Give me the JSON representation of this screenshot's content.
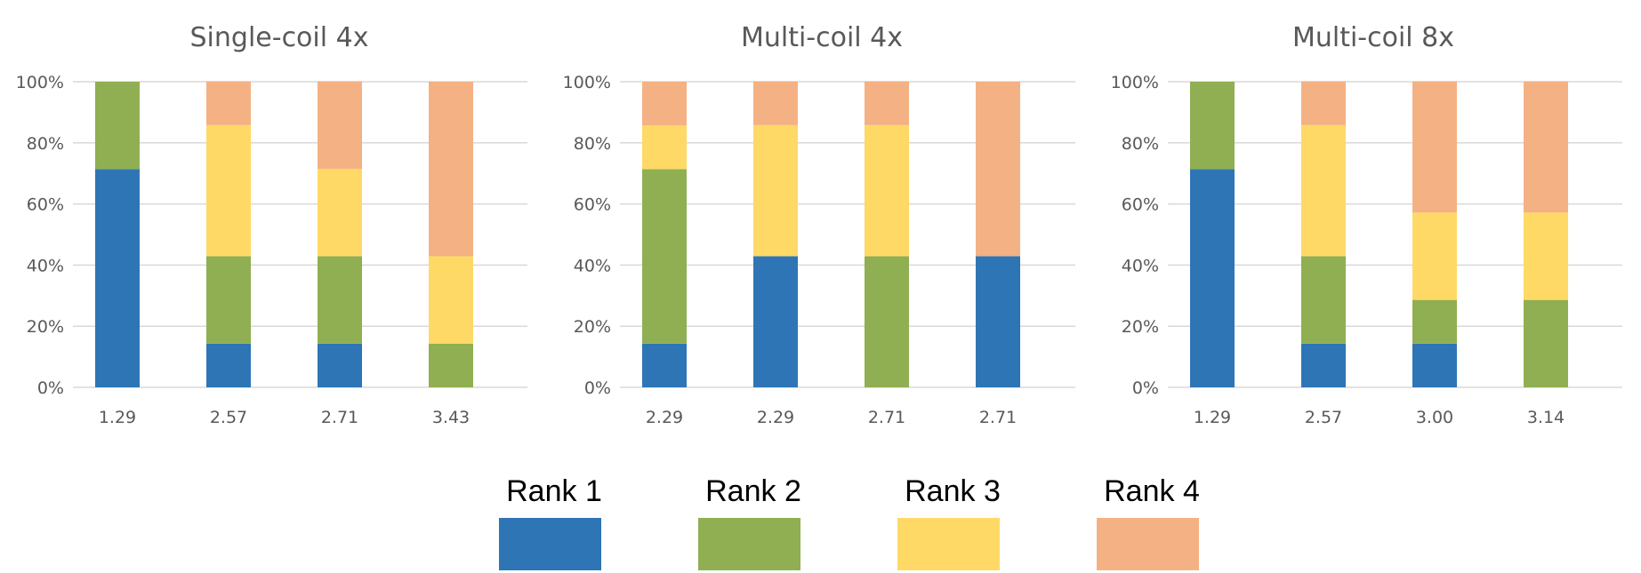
{
  "colors": {
    "Rank 1": "#2e75b6",
    "Rank 2": "#8faf52",
    "Rank 3": "#ffd965",
    "Rank 4": "#f4b183",
    "grid": "#d9d9d9",
    "text": "#595959"
  },
  "legend": {
    "placement": "bottom-center",
    "items": [
      "Rank 1",
      "Rank 2",
      "Rank 3",
      "Rank 4"
    ]
  },
  "chart_data": [
    {
      "type": "bar",
      "stacked": true,
      "title": "Single-coil 4x",
      "categories": [
        "1.29",
        "2.57",
        "2.71",
        "3.43"
      ],
      "ylim": [
        0,
        100
      ],
      "yticks": [
        "0%",
        "20%",
        "40%",
        "60%",
        "80%",
        "100%"
      ],
      "grid": true,
      "series": [
        {
          "name": "Rank 1",
          "values": [
            71.4,
            14.3,
            14.3,
            0
          ]
        },
        {
          "name": "Rank 2",
          "values": [
            28.6,
            28.6,
            28.6,
            14.3
          ]
        },
        {
          "name": "Rank 3",
          "values": [
            0,
            42.9,
            28.6,
            28.6
          ]
        },
        {
          "name": "Rank 4",
          "values": [
            0,
            14.3,
            28.6,
            57.1
          ]
        }
      ]
    },
    {
      "type": "bar",
      "stacked": true,
      "title": "Multi-coil 4x",
      "categories": [
        "2.29",
        "2.29",
        "2.71",
        "2.71"
      ],
      "ylim": [
        0,
        100
      ],
      "yticks": [
        "0%",
        "20%",
        "40%",
        "60%",
        "80%",
        "100%"
      ],
      "grid": true,
      "series": [
        {
          "name": "Rank 1",
          "values": [
            14.3,
            42.9,
            0,
            42.9
          ]
        },
        {
          "name": "Rank 2",
          "values": [
            57.1,
            0,
            42.9,
            0
          ]
        },
        {
          "name": "Rank 3",
          "values": [
            14.3,
            42.9,
            42.9,
            0
          ]
        },
        {
          "name": "Rank 4",
          "values": [
            14.3,
            14.3,
            14.3,
            57.1
          ]
        }
      ]
    },
    {
      "type": "bar",
      "stacked": true,
      "title": "Multi-coil 8x",
      "categories": [
        "1.29",
        "2.57",
        "3.00",
        "3.14"
      ],
      "ylim": [
        0,
        100
      ],
      "yticks": [
        "0%",
        "20%",
        "40%",
        "60%",
        "80%",
        "100%"
      ],
      "grid": true,
      "series": [
        {
          "name": "Rank 1",
          "values": [
            71.4,
            14.3,
            14.3,
            0
          ]
        },
        {
          "name": "Rank 2",
          "values": [
            28.6,
            28.6,
            14.3,
            28.6
          ]
        },
        {
          "name": "Rank 3",
          "values": [
            0,
            42.9,
            28.6,
            28.6
          ]
        },
        {
          "name": "Rank 4",
          "values": [
            0,
            14.3,
            42.9,
            42.9
          ]
        }
      ]
    }
  ]
}
